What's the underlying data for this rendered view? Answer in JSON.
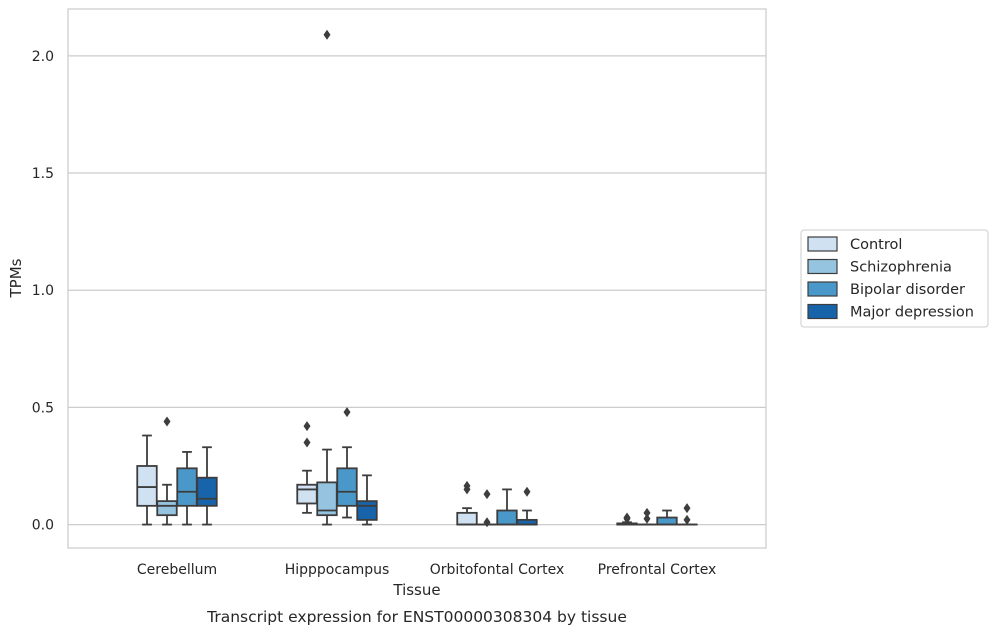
{
  "caption": "Transcript expression for ENST00000308304 by tissue",
  "chart_data": {
    "type": "box",
    "xlabel": "Tissue",
    "ylabel": "TPMs",
    "ylim": [
      -0.1,
      2.2
    ],
    "yticks": [
      "0.0",
      "0.5",
      "1.0",
      "1.5",
      "2.0"
    ],
    "grid": "horizontal",
    "legend_placement": "right",
    "categories": [
      "Cerebellum",
      "Hipppocampus",
      "Orbitofontal Cortex",
      "Prefrontal Cortex"
    ],
    "series": [
      {
        "name": "Control",
        "color": "#d0e1f2",
        "boxes": [
          {
            "whislo": 0.0,
            "q1": 0.08,
            "med": 0.16,
            "q3": 0.25,
            "whishi": 0.38,
            "fliers": []
          },
          {
            "whislo": 0.05,
            "q1": 0.09,
            "med": 0.15,
            "q3": 0.17,
            "whishi": 0.23,
            "fliers": [
              0.35,
              0.42
            ]
          },
          {
            "whislo": 0.0,
            "q1": 0.0,
            "med": 0.0,
            "q3": 0.05,
            "whishi": 0.07,
            "fliers": [
              0.15,
              0.165
            ]
          },
          {
            "whislo": 0.0,
            "q1": 0.0,
            "med": 0.0,
            "q3": 0.005,
            "whishi": 0.01,
            "fliers": [
              0.025,
              0.03
            ]
          }
        ]
      },
      {
        "name": "Schizophrenia",
        "color": "#94c4df",
        "boxes": [
          {
            "whislo": 0.0,
            "q1": 0.04,
            "med": 0.08,
            "q3": 0.1,
            "whishi": 0.17,
            "fliers": [
              0.44
            ]
          },
          {
            "whislo": 0.0,
            "q1": 0.04,
            "med": 0.06,
            "q3": 0.18,
            "whishi": 0.32,
            "fliers": [
              2.09
            ]
          },
          {
            "whislo": 0.0,
            "q1": 0.0,
            "med": 0.0,
            "q3": 0.0,
            "whishi": 0.0,
            "fliers": [
              0.01,
              0.13
            ]
          },
          {
            "whislo": 0.0,
            "q1": 0.0,
            "med": 0.0,
            "q3": 0.0,
            "whishi": 0.0,
            "fliers": [
              0.025,
              0.05
            ]
          }
        ]
      },
      {
        "name": "Bipolar disorder",
        "color": "#4a98c9",
        "boxes": [
          {
            "whislo": 0.0,
            "q1": 0.08,
            "med": 0.14,
            "q3": 0.24,
            "whishi": 0.31,
            "fliers": []
          },
          {
            "whislo": 0.03,
            "q1": 0.08,
            "med": 0.14,
            "q3": 0.24,
            "whishi": 0.33,
            "fliers": [
              0.48
            ]
          },
          {
            "whislo": 0.0,
            "q1": 0.0,
            "med": 0.0,
            "q3": 0.06,
            "whishi": 0.15,
            "fliers": []
          },
          {
            "whislo": 0.0,
            "q1": 0.0,
            "med": 0.0,
            "q3": 0.03,
            "whishi": 0.06,
            "fliers": []
          }
        ]
      },
      {
        "name": "Major depression",
        "color": "#1764ab",
        "boxes": [
          {
            "whislo": 0.0,
            "q1": 0.08,
            "med": 0.11,
            "q3": 0.2,
            "whishi": 0.33,
            "fliers": []
          },
          {
            "whislo": 0.0,
            "q1": 0.02,
            "med": 0.08,
            "q3": 0.1,
            "whishi": 0.21,
            "fliers": []
          },
          {
            "whislo": 0.0,
            "q1": 0.0,
            "med": 0.0,
            "q3": 0.02,
            "whishi": 0.06,
            "fliers": [
              0.14
            ]
          },
          {
            "whislo": 0.0,
            "q1": 0.0,
            "med": 0.0,
            "q3": 0.0,
            "whishi": 0.0,
            "fliers": [
              0.02,
              0.07
            ]
          }
        ]
      }
    ]
  }
}
